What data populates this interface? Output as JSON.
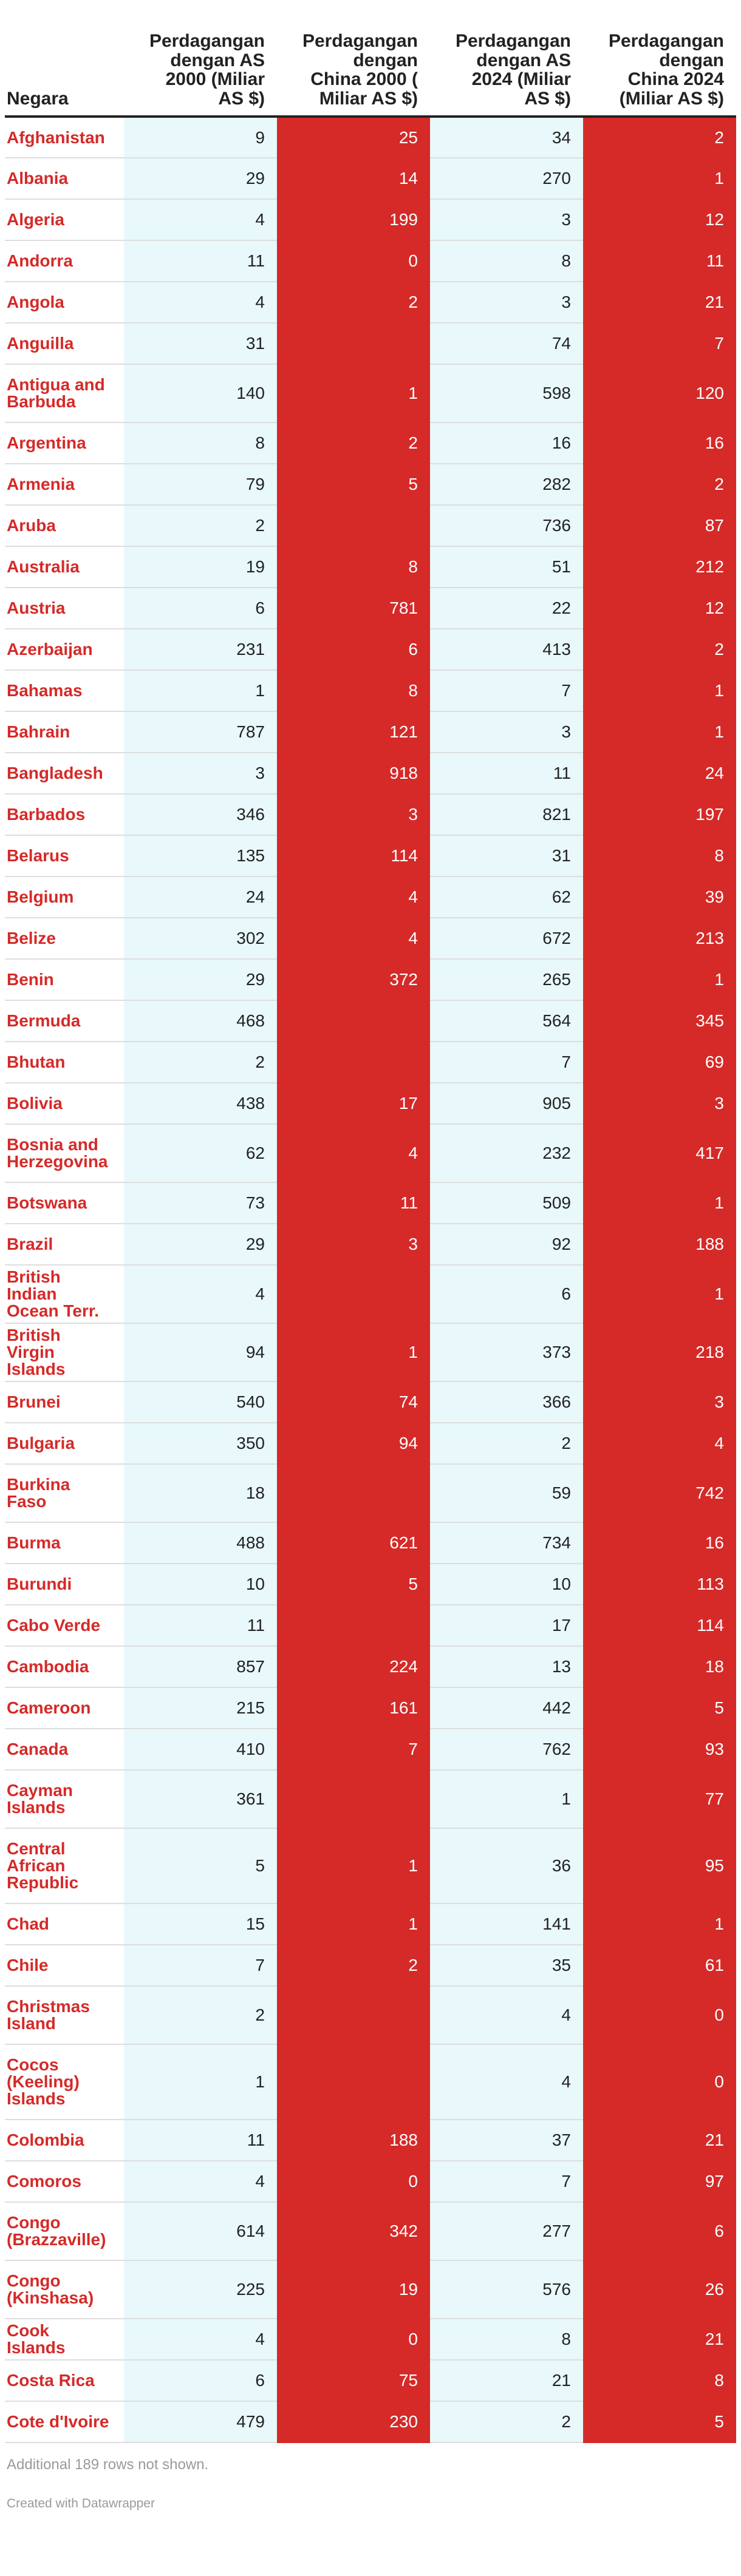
{
  "chart_data": {
    "type": "table",
    "columns": [
      "Negara",
      "Perdagangan dengan AS 2000 (Miliar AS $)",
      "Perdagangan dengan China 2000 ( Miliar AS $)",
      "Perdagangan dengan AS 2024 (Miliar AS $)",
      "Perdagangan dengan China 2024 (Miliar AS $)"
    ],
    "colors": {
      "us": "#e8f8fb",
      "china": "#d52a28",
      "country": "#d52a28"
    },
    "rows": [
      [
        "Afghanistan",
        "9",
        "25",
        "34",
        "2"
      ],
      [
        "Albania",
        "29",
        "14",
        "270",
        "1"
      ],
      [
        "Algeria",
        "4",
        "199",
        "3",
        "12"
      ],
      [
        "Andorra",
        "11",
        "0",
        "8",
        "11"
      ],
      [
        "Angola",
        "4",
        "2",
        "3",
        "21"
      ],
      [
        "Anguilla",
        "31",
        "",
        "74",
        "7"
      ],
      [
        "Antigua and Barbuda",
        "140",
        "1",
        "598",
        "120"
      ],
      [
        "Argentina",
        "8",
        "2",
        "16",
        "16"
      ],
      [
        "Armenia",
        "79",
        "5",
        "282",
        "2"
      ],
      [
        "Aruba",
        "2",
        "",
        "736",
        "87"
      ],
      [
        "Australia",
        "19",
        "8",
        "51",
        "212"
      ],
      [
        "Austria",
        "6",
        "781",
        "22",
        "12"
      ],
      [
        "Azerbaijan",
        "231",
        "6",
        "413",
        "2"
      ],
      [
        "Bahamas",
        "1",
        "8",
        "7",
        "1"
      ],
      [
        "Bahrain",
        "787",
        "121",
        "3",
        "1"
      ],
      [
        "Bangladesh",
        "3",
        "918",
        "11",
        "24"
      ],
      [
        "Barbados",
        "346",
        "3",
        "821",
        "197"
      ],
      [
        "Belarus",
        "135",
        "114",
        "31",
        "8"
      ],
      [
        "Belgium",
        "24",
        "4",
        "62",
        "39"
      ],
      [
        "Belize",
        "302",
        "4",
        "672",
        "213"
      ],
      [
        "Benin",
        "29",
        "372",
        "265",
        "1"
      ],
      [
        "Bermuda",
        "468",
        "",
        "564",
        "345"
      ],
      [
        "Bhutan",
        "2",
        "",
        "7",
        "69"
      ],
      [
        "Bolivia",
        "438",
        "17",
        "905",
        "3"
      ],
      [
        "Bosnia and Herzegovina",
        "62",
        "4",
        "232",
        "417"
      ],
      [
        "Botswana",
        "73",
        "11",
        "509",
        "1"
      ],
      [
        "Brazil",
        "29",
        "3",
        "92",
        "188"
      ],
      [
        "British Indian Ocean Terr.",
        "4",
        "",
        "6",
        "1"
      ],
      [
        "British Virgin Islands",
        "94",
        "1",
        "373",
        "218"
      ],
      [
        "Brunei",
        "540",
        "74",
        "366",
        "3"
      ],
      [
        "Bulgaria",
        "350",
        "94",
        "2",
        "4"
      ],
      [
        "Burkina Faso",
        "18",
        "",
        "59",
        "742"
      ],
      [
        "Burma",
        "488",
        "621",
        "734",
        "16"
      ],
      [
        "Burundi",
        "10",
        "5",
        "10",
        "113"
      ],
      [
        "Cabo Verde",
        "11",
        "",
        "17",
        "114"
      ],
      [
        "Cambodia",
        "857",
        "224",
        "13",
        "18"
      ],
      [
        "Cameroon",
        "215",
        "161",
        "442",
        "5"
      ],
      [
        "Canada",
        "410",
        "7",
        "762",
        "93"
      ],
      [
        "Cayman Islands",
        "361",
        "",
        "1",
        "77"
      ],
      [
        "Central African Republic",
        "5",
        "1",
        "36",
        "95"
      ],
      [
        "Chad",
        "15",
        "1",
        "141",
        "1"
      ],
      [
        "Chile",
        "7",
        "2",
        "35",
        "61"
      ],
      [
        "Christmas Island",
        "2",
        "",
        "4",
        "0"
      ],
      [
        "Cocos (Keeling) Islands",
        "1",
        "",
        "4",
        "0"
      ],
      [
        "Colombia",
        "11",
        "188",
        "37",
        "21"
      ],
      [
        "Comoros",
        "4",
        "0",
        "7",
        "97"
      ],
      [
        "Congo (Brazzaville)",
        "614",
        "342",
        "277",
        "6"
      ],
      [
        "Congo (Kinshasa)",
        "225",
        "19",
        "576",
        "26"
      ],
      [
        "Cook Islands",
        "4",
        "0",
        "8",
        "21"
      ],
      [
        "Costa Rica",
        "6",
        "75",
        "21",
        "8"
      ],
      [
        "Cote d'Ivoire",
        "479",
        "230",
        "2",
        "5"
      ]
    ]
  },
  "footer": {
    "more_rows": "Additional 189 rows not shown.",
    "credit": "Created with Datawrapper"
  }
}
